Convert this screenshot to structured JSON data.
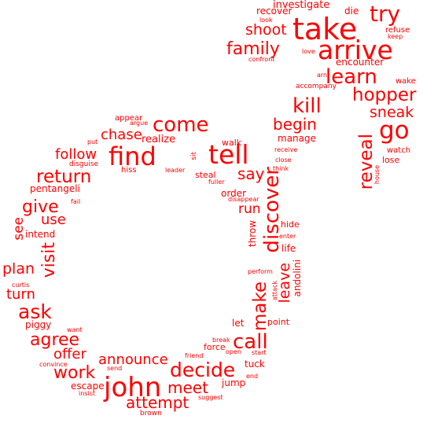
{
  "cloud": {
    "color": "#ff0000",
    "words": [
      "take",
      "tell",
      "find",
      "john",
      "arrive",
      "try",
      "go",
      "kill",
      "learn",
      "come",
      "discover",
      "decide",
      "call",
      "make",
      "ask",
      "hopper",
      "return",
      "reveal",
      "visit",
      "family",
      "give",
      "agree",
      "begin",
      "work",
      "shoot",
      "sneak",
      "announce",
      "attempt",
      "meet",
      "say",
      "follow",
      "leave",
      "chase",
      "offer",
      "run",
      "turn",
      "plan",
      "use",
      "investigate",
      "recover",
      "see",
      "encounter",
      "andolini",
      "throw",
      "die",
      "pentangeli",
      "refuse",
      "realize",
      "manage",
      "walk",
      "wake",
      "watch",
      "lose",
      "escape",
      "tuck",
      "appear",
      "life",
      "hide",
      "let",
      "point",
      "order",
      "piggy",
      "jump",
      "house",
      "steal",
      "intend",
      "love",
      "accompany",
      "arn",
      "confront",
      "look",
      "keep",
      "argue",
      "put",
      "disguise",
      "hiss",
      "leader",
      "sit",
      "fuller",
      "receive",
      "close",
      "think",
      "disappear",
      "fail",
      "enter",
      "perform",
      "attack",
      "curtis",
      "want",
      "convince",
      "send",
      "break",
      "open",
      "start",
      "friend",
      "force",
      "end",
      "insist",
      "brown",
      "suggest"
    ]
  }
}
